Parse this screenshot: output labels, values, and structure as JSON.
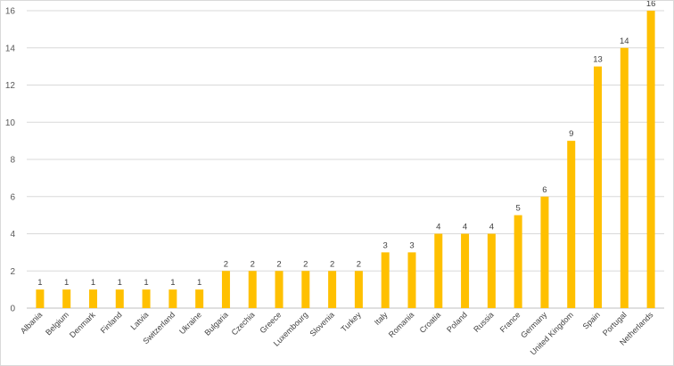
{
  "chart_data": {
    "type": "bar",
    "categories": [
      "Albania",
      "Belgium",
      "Denmark",
      "Finland",
      "Latvia",
      "Switzerland",
      "Ukraine",
      "Bulgaria",
      "Czechia",
      "Greece",
      "Luxembourg",
      "Slovenia",
      "Turkey",
      "Italy",
      "Romania",
      "Croatia",
      "Poland",
      "Russia",
      "France",
      "Germany",
      "United Kingdom",
      "Spain",
      "Portugal",
      "Netherlands"
    ],
    "values": [
      1,
      1,
      1,
      1,
      1,
      1,
      1,
      2,
      2,
      2,
      2,
      2,
      2,
      3,
      3,
      4,
      4,
      4,
      5,
      6,
      9,
      13,
      14,
      16
    ],
    "title": "",
    "xlabel": "",
    "ylabel": "",
    "ylim": [
      0,
      16
    ],
    "yticks": [
      0,
      2,
      4,
      6,
      8,
      10,
      12,
      14,
      16
    ],
    "grid": true,
    "bar_color": "#FFC000"
  }
}
